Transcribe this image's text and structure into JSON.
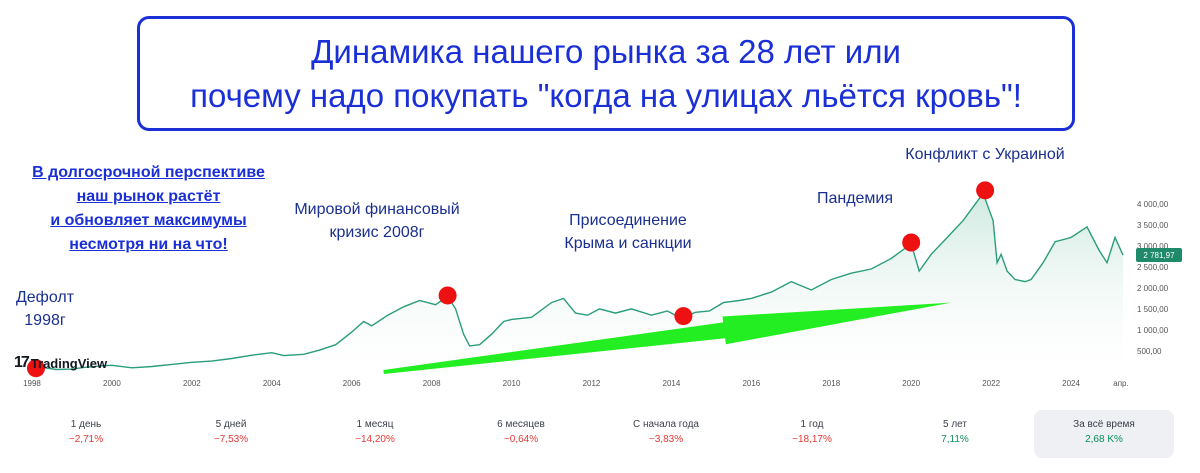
{
  "title": {
    "line1": "Динамика нашего рынка за 28 лет или",
    "line2": "почему надо покупать \"когда на улицах льётся кровь\"!"
  },
  "lead_text": [
    "В долгосрочной перспективе",
    "наш рынок растёт",
    "и обновляет максимумы",
    "несмотря ни на что!"
  ],
  "annotations": {
    "default": [
      "Дефолт",
      "1998г"
    ],
    "crisis": [
      "Мировой финансовый",
      "кризис 2008г"
    ],
    "crimea": [
      "Присоединение",
      "Крыма и санкции"
    ],
    "pandemic": "Пандемия",
    "conflict": "Конфликт с Украиной"
  },
  "branding": {
    "logo_mark": "17",
    "logo_name": "TradingView"
  },
  "colors": {
    "title": "#1a2fd6",
    "line": "#2a9d7c",
    "fill": "#cfe9e0",
    "marker": "#ee1111",
    "arrow": "#22ee22",
    "price_badge": "#1f8a6a"
  },
  "chart_data": {
    "type": "area",
    "x_unit": "year",
    "xlim": [
      1997.7,
      2025.3
    ],
    "ylim": [
      0,
      4400
    ],
    "x_ticks": [
      {
        "v": 1998,
        "label": "1998"
      },
      {
        "v": 2000,
        "label": "2000"
      },
      {
        "v": 2002,
        "label": "2002"
      },
      {
        "v": 2004,
        "label": "2004"
      },
      {
        "v": 2006,
        "label": "2006"
      },
      {
        "v": 2008,
        "label": "2008"
      },
      {
        "v": 2010,
        "label": "2010"
      },
      {
        "v": 2012,
        "label": "2012"
      },
      {
        "v": 2014,
        "label": "2014"
      },
      {
        "v": 2016,
        "label": "2016"
      },
      {
        "v": 2018,
        "label": "2018"
      },
      {
        "v": 2020,
        "label": "2020"
      },
      {
        "v": 2022,
        "label": "2022"
      },
      {
        "v": 2024,
        "label": "2024"
      },
      {
        "v": 2025.25,
        "label": "апр."
      }
    ],
    "y_ticks": [
      {
        "v": 500,
        "label": "500,00"
      },
      {
        "v": 1000,
        "label": "1 000,00"
      },
      {
        "v": 1500,
        "label": "1 500,00"
      },
      {
        "v": 2000,
        "label": "2 000,00"
      },
      {
        "v": 2500,
        "label": "2 500,00"
      },
      {
        "v": 3000,
        "label": "3 000,00"
      },
      {
        "v": 3500,
        "label": "3 500,00"
      },
      {
        "v": 4000,
        "label": "4 000,00"
      }
    ],
    "last_price": {
      "value": 2781.97,
      "label": "2 781,97"
    },
    "points": [
      [
        1997.9,
        100
      ],
      [
        1998.2,
        120
      ],
      [
        1998.6,
        60
      ],
      [
        1999.0,
        70
      ],
      [
        1999.3,
        110
      ],
      [
        1999.8,
        150
      ],
      [
        2000.0,
        160
      ],
      [
        2000.5,
        100
      ],
      [
        2001.0,
        130
      ],
      [
        2001.5,
        180
      ],
      [
        2002.0,
        230
      ],
      [
        2002.5,
        260
      ],
      [
        2003.0,
        320
      ],
      [
        2003.5,
        400
      ],
      [
        2004.0,
        460
      ],
      [
        2004.3,
        390
      ],
      [
        2004.8,
        420
      ],
      [
        2005.2,
        520
      ],
      [
        2005.6,
        650
      ],
      [
        2006.0,
        950
      ],
      [
        2006.3,
        1200
      ],
      [
        2006.5,
        1100
      ],
      [
        2006.9,
        1350
      ],
      [
        2007.3,
        1550
      ],
      [
        2007.7,
        1700
      ],
      [
        2007.9,
        1650
      ],
      [
        2008.1,
        1600
      ],
      [
        2008.4,
        1800
      ],
      [
        2008.6,
        1500
      ],
      [
        2008.8,
        900
      ],
      [
        2008.95,
        620
      ],
      [
        2009.2,
        650
      ],
      [
        2009.5,
        900
      ],
      [
        2009.8,
        1200
      ],
      [
        2010.0,
        1250
      ],
      [
        2010.5,
        1300
      ],
      [
        2011.0,
        1650
      ],
      [
        2011.3,
        1750
      ],
      [
        2011.6,
        1400
      ],
      [
        2011.9,
        1350
      ],
      [
        2012.2,
        1500
      ],
      [
        2012.6,
        1400
      ],
      [
        2013.0,
        1500
      ],
      [
        2013.5,
        1350
      ],
      [
        2013.9,
        1450
      ],
      [
        2014.1,
        1350
      ],
      [
        2014.3,
        1300
      ],
      [
        2014.6,
        1420
      ],
      [
        2014.95,
        1450
      ],
      [
        2015.3,
        1650
      ],
      [
        2015.7,
        1700
      ],
      [
        2016.0,
        1750
      ],
      [
        2016.5,
        1900
      ],
      [
        2017.0,
        2150
      ],
      [
        2017.5,
        1950
      ],
      [
        2018.0,
        2200
      ],
      [
        2018.5,
        2350
      ],
      [
        2019.0,
        2450
      ],
      [
        2019.5,
        2700
      ],
      [
        2020.0,
        3050
      ],
      [
        2020.2,
        2400
      ],
      [
        2020.5,
        2800
      ],
      [
        2020.9,
        3200
      ],
      [
        2021.3,
        3600
      ],
      [
        2021.8,
        4250
      ],
      [
        2022.05,
        3600
      ],
      [
        2022.15,
        2600
      ],
      [
        2022.25,
        2800
      ],
      [
        2022.4,
        2400
      ],
      [
        2022.6,
        2200
      ],
      [
        2022.85,
        2150
      ],
      [
        2023.0,
        2200
      ],
      [
        2023.3,
        2600
      ],
      [
        2023.6,
        3100
      ],
      [
        2024.0,
        3200
      ],
      [
        2024.4,
        3450
      ],
      [
        2024.7,
        2900
      ],
      [
        2024.9,
        2600
      ],
      [
        2025.1,
        3200
      ],
      [
        2025.3,
        2780
      ]
    ],
    "events": [
      {
        "x": 1998.1,
        "y": 90
      },
      {
        "x": 2008.4,
        "y": 1820
      },
      {
        "x": 2014.3,
        "y": 1330
      },
      {
        "x": 2020.0,
        "y": 3080
      },
      {
        "x": 2021.85,
        "y": 4320
      }
    ],
    "trend_arrow": {
      "from": [
        2006.8,
        0
      ],
      "to": [
        2021.0,
        1650
      ]
    }
  },
  "periods": [
    {
      "label": "1 день",
      "value": "−2,71%",
      "sign": "neg"
    },
    {
      "label": "5 дней",
      "value": "−7,53%",
      "sign": "neg"
    },
    {
      "label": "1 месяц",
      "value": "−14,20%",
      "sign": "neg"
    },
    {
      "label": "6 месяцев",
      "value": "−0,64%",
      "sign": "neg"
    },
    {
      "label": "С начала года",
      "value": "−3,83%",
      "sign": "neg"
    },
    {
      "label": "1 год",
      "value": "−18,17%",
      "sign": "neg"
    },
    {
      "label": "5 лет",
      "value": "7,11%",
      "sign": "pos"
    },
    {
      "label": "За всё время",
      "value": "2,68 K%",
      "sign": "pos",
      "active": true
    }
  ]
}
